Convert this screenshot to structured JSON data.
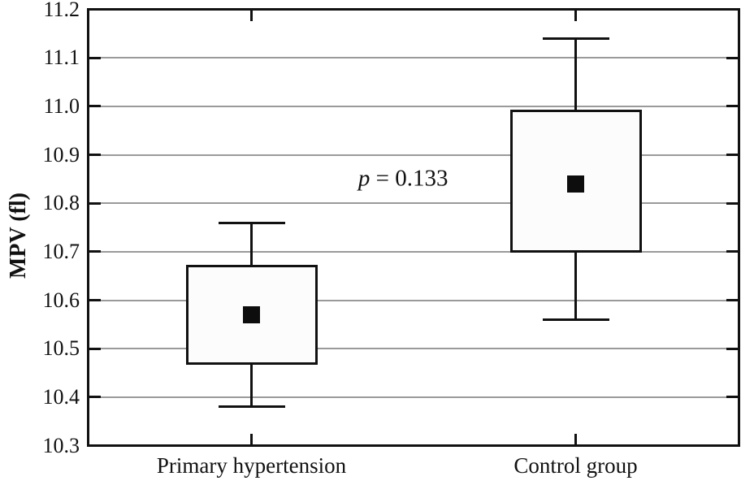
{
  "figure": {
    "background": "#ffffff",
    "frame_color": "#111111",
    "gridline_color": "#9a9a9a",
    "tick_color": "#111111",
    "box_fill": "#fcfcfc",
    "box_border": "#111111",
    "marker_color": "#0d0d0d",
    "text_color": "#111111"
  },
  "chart_data": {
    "type": "boxplot",
    "title": "",
    "xlabel": "",
    "ylabel": "MPV (fl)",
    "ylim": [
      10.3,
      11.2
    ],
    "ytick_step": 0.1,
    "ytick_labels": [
      "11.2",
      "11.1",
      "11.0",
      "10.9",
      "10.8",
      "10.7",
      "10.6",
      "10.5",
      "10.4",
      "10.3"
    ],
    "categories": [
      "Primary hypertension",
      "Control group"
    ],
    "grid": true,
    "legend": null,
    "marker": "mean-black-square",
    "series": [
      {
        "name": "Primary hypertension",
        "whisker_low": 10.38,
        "q1": 10.47,
        "mean": 10.57,
        "q3": 10.67,
        "whisker_high": 10.76
      },
      {
        "name": "Control group",
        "whisker_low": 10.56,
        "q1": 10.7,
        "mean": 10.84,
        "q3": 10.99,
        "whisker_high": 11.14
      }
    ],
    "annotation": {
      "symbol_italic": "p",
      "rest": " = 0.133",
      "full_text": "p = 0.133",
      "x_frac": 0.484,
      "y_value": 10.85
    }
  }
}
